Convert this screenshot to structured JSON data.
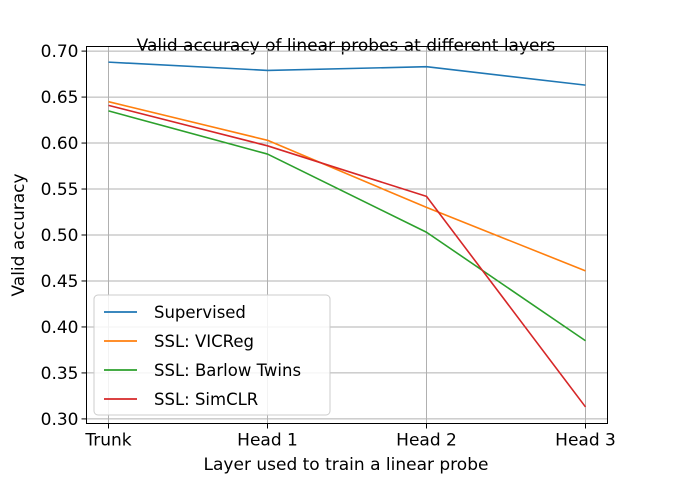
{
  "chart_data": {
    "type": "line",
    "title": "Valid accuracy of linear probes at different layers",
    "xlabel": "Layer used to train a linear probe",
    "ylabel": "Valid accuracy",
    "categories": [
      "Trunk",
      "Head 1",
      "Head 2",
      "Head 3"
    ],
    "ylim": [
      0.295,
      0.705
    ],
    "yticks": [
      0.3,
      0.35,
      0.4,
      0.45,
      0.5,
      0.55,
      0.6,
      0.65,
      0.7
    ],
    "ytick_labels": [
      "0.30",
      "0.35",
      "0.40",
      "0.45",
      "0.50",
      "0.55",
      "0.60",
      "0.65",
      "0.70"
    ],
    "grid": true,
    "legend_position": "bottom-left",
    "series": [
      {
        "name": "Supervised",
        "color": "#1f77b4",
        "values": [
          0.688,
          0.679,
          0.683,
          0.663
        ]
      },
      {
        "name": "SSL: VICReg",
        "color": "#ff7f0e",
        "values": [
          0.645,
          0.603,
          0.53,
          0.461
        ]
      },
      {
        "name": "SSL: Barlow Twins",
        "color": "#2ca02c",
        "values": [
          0.635,
          0.588,
          0.503,
          0.385
        ]
      },
      {
        "name": "SSL: SimCLR",
        "color": "#d62728",
        "values": [
          0.641,
          0.597,
          0.542,
          0.313
        ]
      }
    ]
  }
}
